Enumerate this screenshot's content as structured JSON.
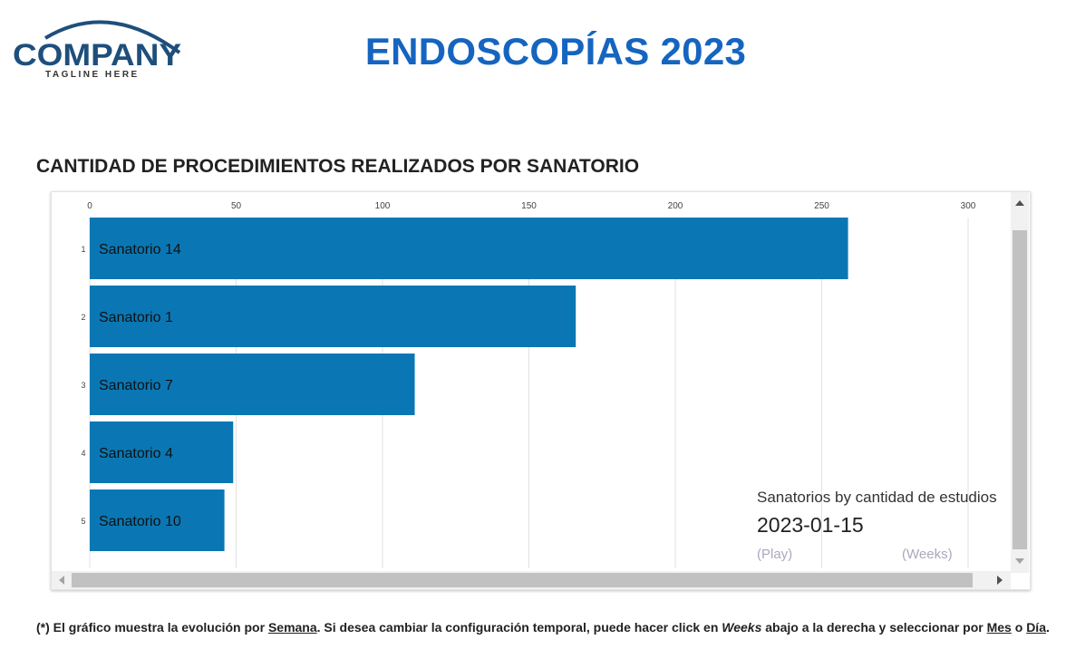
{
  "logo": {
    "name": "COMPANY",
    "tagline": "TAGLINE HERE"
  },
  "page_title": "ENDOSCOPÍAS 2023",
  "section_title": "CANTIDAD DE PROCEDIMIENTOS REALIZADOS POR SANATORIO",
  "colors": {
    "bar": "#0a77b4",
    "title": "#1565c0",
    "logo": "#1e4f7c",
    "grid": "#e2e2e2"
  },
  "chart_data": {
    "type": "bar",
    "orientation": "horizontal",
    "title": "Sanatorios by cantidad de estudios",
    "date_label": "2023-01-15",
    "controls": {
      "play": "(Play)",
      "period": "(Weeks)"
    },
    "xlim": [
      0,
      300
    ],
    "x_ticks": [
      0,
      50,
      100,
      150,
      200,
      250,
      300
    ],
    "ranks": [
      "1",
      "2",
      "3",
      "4",
      "5"
    ],
    "categories": [
      "Sanatorio 14",
      "Sanatorio 1",
      "Sanatorio 7",
      "Sanatorio 4",
      "Sanatorio 10"
    ],
    "values": [
      259,
      166,
      111,
      49,
      46
    ]
  },
  "footnote": {
    "p1": "(*) El gráfico muestra la evolución por ",
    "semana": "Semana",
    "p2": ". Si desea cambiar la configuración temporal, puede hacer click en ",
    "weeks": "Weeks",
    "p3": " abajo a la derecha y seleccionar por ",
    "mes": "Mes",
    "p4": " o ",
    "dia": "Día",
    "p5": "."
  }
}
